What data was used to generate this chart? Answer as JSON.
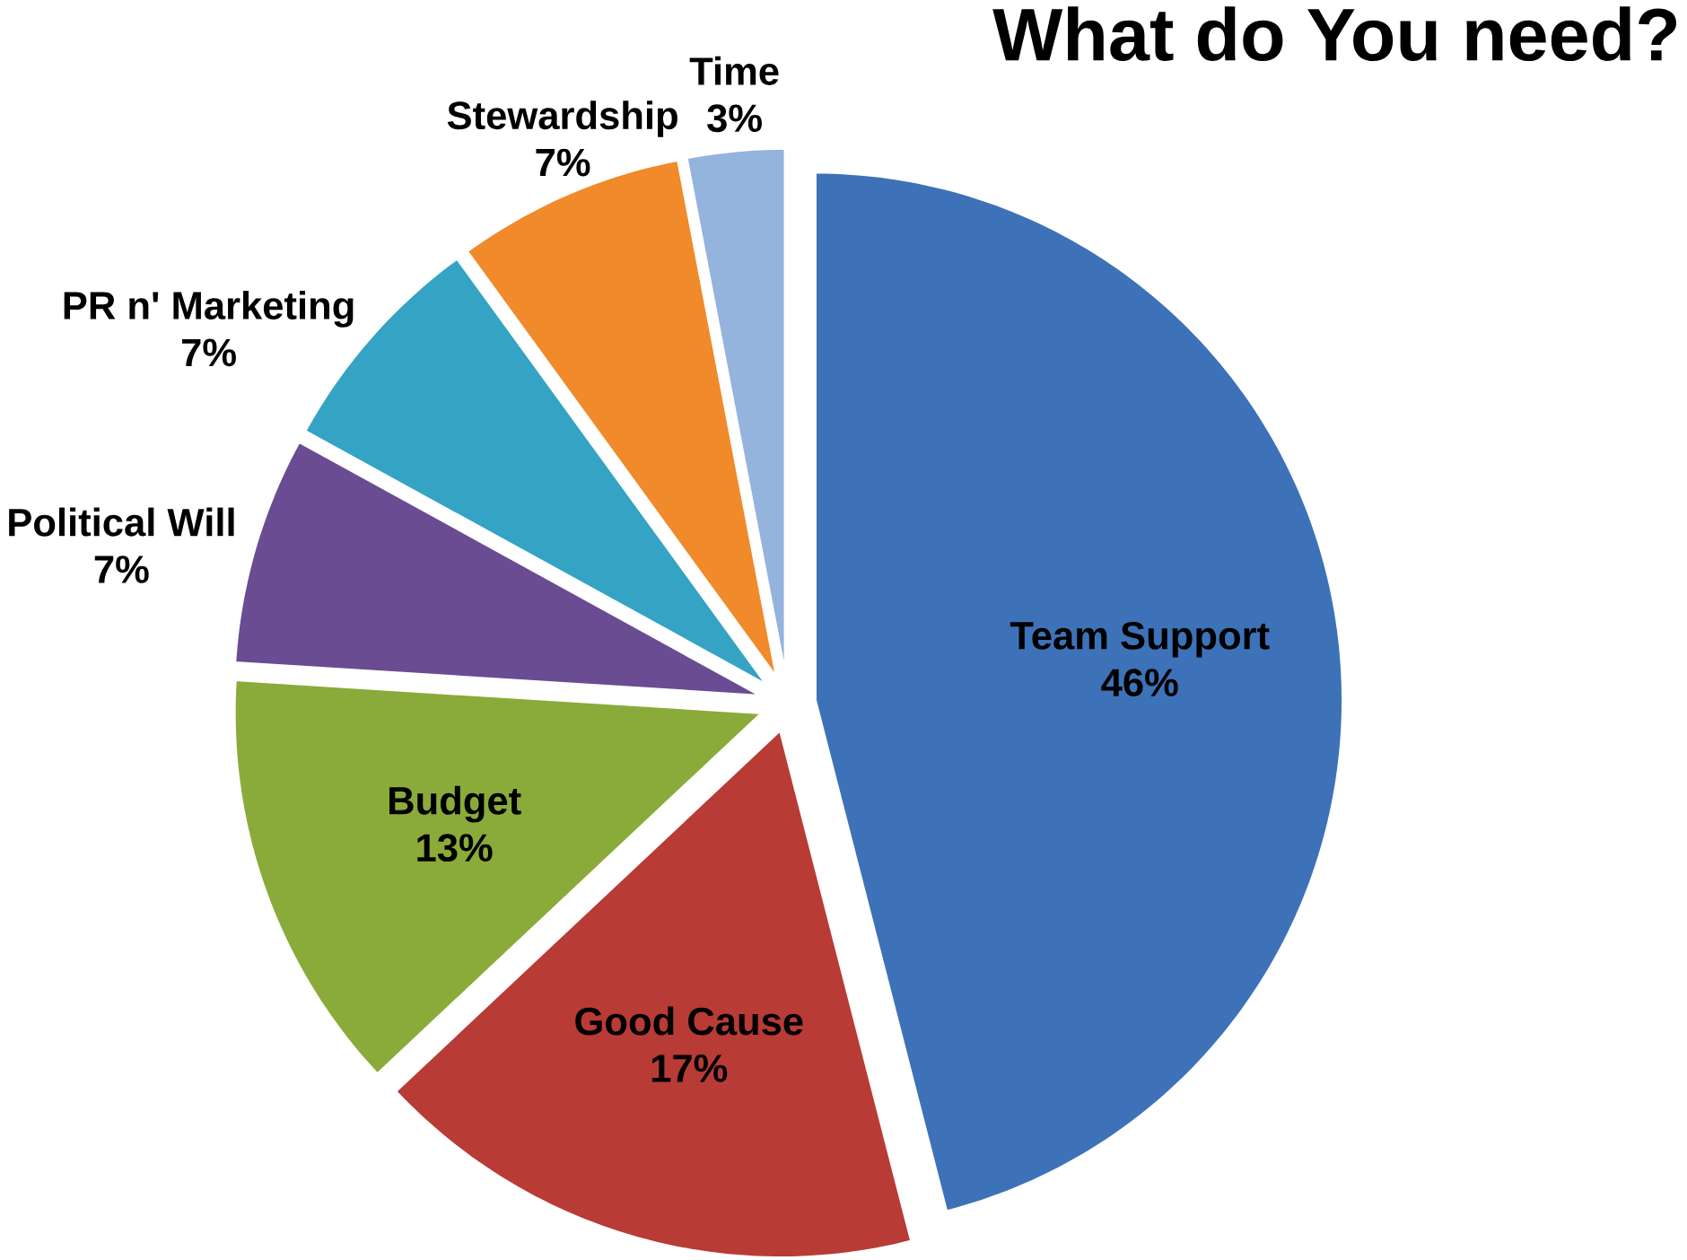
{
  "chart_data": {
    "type": "pie",
    "title": "What do You need?",
    "categories": [
      "Team Support",
      "Good Cause",
      "Budget",
      "Political Will",
      "PR n' Marketing",
      "Stewardship",
      "Time"
    ],
    "values": [
      46,
      17,
      13,
      7,
      7,
      7,
      3
    ],
    "value_labels": [
      "46%",
      "17%",
      "13%",
      "7%",
      "7%",
      "7%",
      "3%"
    ],
    "colors": [
      "#3d72b8",
      "#b83b36",
      "#8aab3a",
      "#6a4c93",
      "#35a3c3",
      "#f08a2a",
      "#94b3dd"
    ],
    "data_labels": true
  }
}
